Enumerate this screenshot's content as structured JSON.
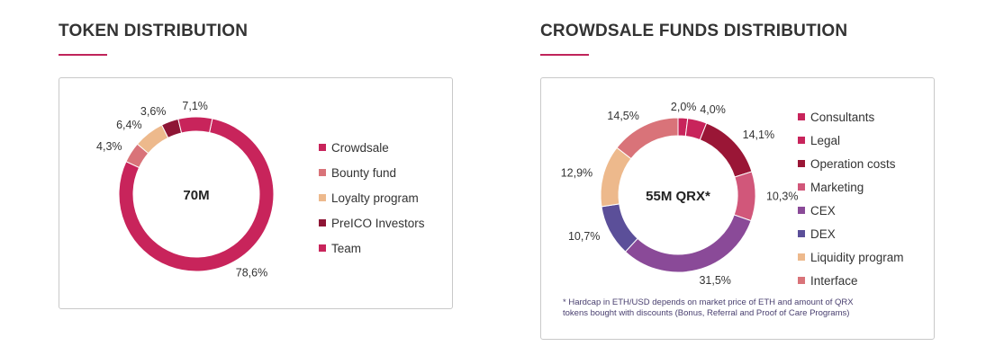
{
  "colors": {
    "accent": "#c0245a",
    "crowdsale": "#c8245b",
    "bounty": "#d97379",
    "loyalty": "#edb98c",
    "preico": "#8e1535",
    "team": "#c8245b",
    "consultants": "#c8245b",
    "legal": "#c8245b",
    "operation": "#9a1636",
    "marketing": "#d1577a",
    "cex": "#8a4a98",
    "dex": "#5b4f99",
    "liquidity": "#edb98c",
    "interface": "#d97379"
  },
  "token": {
    "title": "TOKEN DISTRIBUTION",
    "center": "70M",
    "legend": [
      "Crowdsale",
      "Bounty fund",
      "Loyalty program",
      "PreICO Investors",
      "Team"
    ]
  },
  "crowdsale": {
    "title": "CROWDSALE FUNDS DISTRIBUTION",
    "center": "55M QRX*",
    "legend": [
      "Consultants",
      "Legal",
      "Operation costs",
      "Marketing",
      "CEX",
      "DEX",
      "Liquidity program",
      "Interface"
    ],
    "note_line1": "* Hardcap in ETH/USD depends on market price of ETH and amount of QRX",
    "note_line2": "tokens bought with discounts (Bonus, Referral and Proof of Care Programs)"
  },
  "chart_data": [
    {
      "type": "pie",
      "title": "TOKEN DISTRIBUTION",
      "center_label": "70M",
      "slices": [
        {
          "name": "Crowdsale",
          "value": 78.6,
          "label": "78,6%"
        },
        {
          "name": "Bounty fund",
          "value": 4.3,
          "label": "4,3%"
        },
        {
          "name": "Loyalty program",
          "value": 6.4,
          "label": "6,4%"
        },
        {
          "name": "PreICO Investors",
          "value": 3.6,
          "label": "3,6%"
        },
        {
          "name": "Team",
          "value": 7.1,
          "label": "7,1%"
        }
      ]
    },
    {
      "type": "pie",
      "title": "CROWDSALE FUNDS DISTRIBUTION",
      "center_label": "55M QRX*",
      "slices": [
        {
          "name": "Consultants",
          "value": 2.0,
          "label": "2,0%"
        },
        {
          "name": "Legal",
          "value": 4.0,
          "label": "4,0%"
        },
        {
          "name": "Operation costs",
          "value": 14.1,
          "label": "14,1%"
        },
        {
          "name": "Marketing",
          "value": 10.3,
          "label": "10,3%"
        },
        {
          "name": "CEX",
          "value": 31.5,
          "label": "31,5%"
        },
        {
          "name": "DEX",
          "value": 10.7,
          "label": "10,7%"
        },
        {
          "name": "Liquidity program",
          "value": 12.9,
          "label": "12,9%"
        },
        {
          "name": "Interface",
          "value": 14.5,
          "label": "14,5%"
        }
      ]
    }
  ]
}
